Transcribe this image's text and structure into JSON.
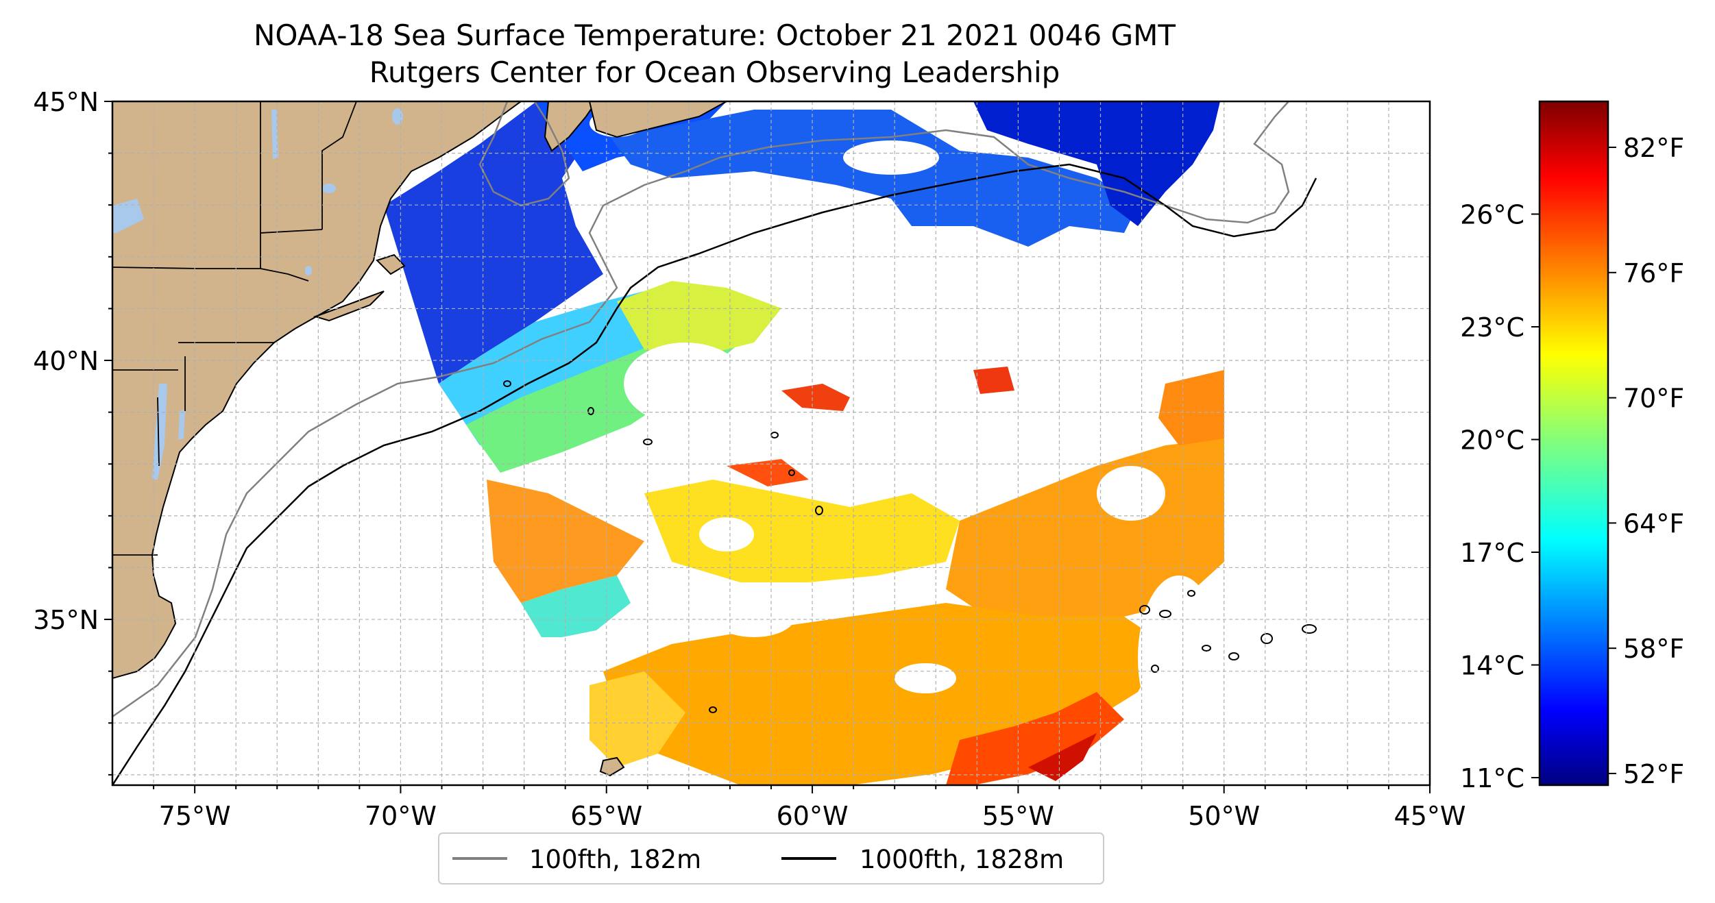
{
  "title": "NOAA-18 Sea Surface Temperature: October 21 2021 0046 GMT",
  "subtitle": "Rutgers Center for Ocean Observing Leadership",
  "map": {
    "lon_ticks": [
      "75°W",
      "70°W",
      "65°W",
      "60°W",
      "55°W",
      "50°W",
      "45°W"
    ],
    "lat_ticks": [
      "45°N",
      "40°N",
      "35°N"
    ],
    "lon_range": [
      -77,
      -45
    ],
    "lat_range": [
      31.8,
      45
    ],
    "colors": {
      "land": "#d2b48c",
      "lakes": "#a8c8ec",
      "isobath_100": "#808080",
      "isobath_1000": "#000000",
      "grid": "#b0b0b0"
    }
  },
  "legend": {
    "items": [
      {
        "label": "100fth, 182m",
        "color": "#808080"
      },
      {
        "label": "1000fth, 1828m",
        "color": "#000000"
      }
    ]
  },
  "colorbar": {
    "celsius_ticks": [
      "26°C",
      "23°C",
      "20°C",
      "17°C",
      "14°C",
      "11°C"
    ],
    "fahrenheit_ticks": [
      "82°F",
      "76°F",
      "70°F",
      "64°F",
      "58°F",
      "52°F"
    ],
    "colormap": "jet"
  }
}
